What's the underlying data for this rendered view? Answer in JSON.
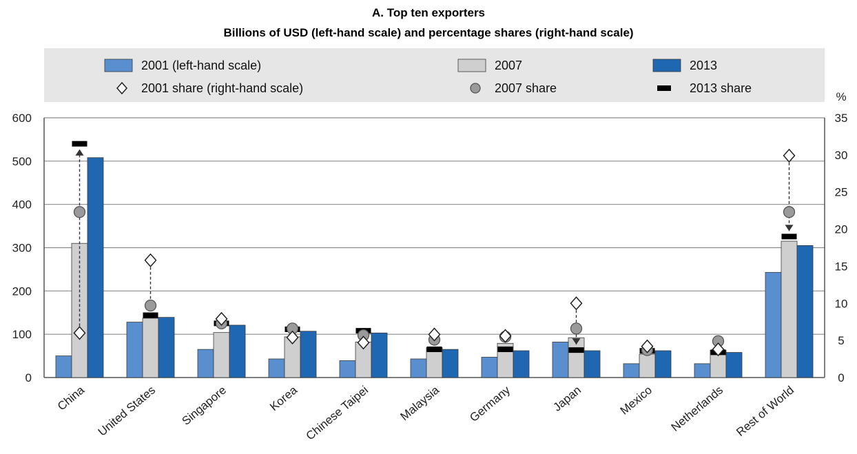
{
  "chart_data": {
    "type": "bar",
    "title": "A. Top ten exporters",
    "subtitle": "Billions of USD (left-hand scale) and percentage shares (right-hand scale)",
    "y2_unit": "%",
    "categories": [
      "China",
      "United States",
      "Singapore",
      "Korea",
      "Chinese Taipei",
      "Malaysia",
      "Germany",
      "Japan",
      "Mexico",
      "Netherlands",
      "Rest of World"
    ],
    "ylim": [
      0,
      600
    ],
    "yticks": [
      0,
      100,
      200,
      300,
      400,
      500,
      600
    ],
    "y2lim": [
      0,
      35
    ],
    "y2ticks": [
      0,
      5,
      10,
      15,
      20,
      25,
      30,
      35
    ],
    "grid": true,
    "legend_position": "top",
    "series": [
      {
        "name": "2001 (left-hand scale)",
        "axis": "left",
        "kind": "bar",
        "color": "#5a8fcf",
        "values": [
          50,
          128,
          65,
          43,
          39,
          43,
          47,
          82,
          32,
          32,
          243
        ]
      },
      {
        "name": "2007",
        "axis": "left",
        "kind": "bar",
        "color": "#cfcfcf",
        "values": [
          310,
          137,
          104,
          94,
          82,
          69,
          79,
          92,
          54,
          63,
          315
        ]
      },
      {
        "name": "2013",
        "axis": "left",
        "kind": "bar",
        "color": "#1f67b1",
        "values": [
          508,
          139,
          121,
          107,
          103,
          65,
          62,
          62,
          62,
          58,
          305
        ]
      },
      {
        "name": "2001 share (right-hand scale)",
        "axis": "right",
        "kind": "marker",
        "marker": "diamond",
        "values": [
          6.0,
          15.8,
          7.9,
          5.4,
          4.7,
          5.8,
          5.6,
          10.0,
          4.2,
          3.8,
          29.9
        ]
      },
      {
        "name": "2007 share",
        "axis": "right",
        "kind": "marker",
        "marker": "circle",
        "values": [
          22.3,
          9.7,
          7.3,
          6.6,
          5.7,
          5.1,
          5.5,
          6.6,
          3.7,
          4.9,
          22.3
        ]
      },
      {
        "name": "2013 share",
        "axis": "right",
        "kind": "marker",
        "marker": "dash",
        "values": [
          31.5,
          8.4,
          7.3,
          6.5,
          6.3,
          3.8,
          3.8,
          3.7,
          3.6,
          3.4,
          19.0
        ]
      }
    ]
  },
  "colors": {
    "plot_background": "#ffffff",
    "legend_background": "#e6e6e6",
    "grid": "#8c8c8c",
    "axis": "#555555",
    "bar_outline": "#3a3a3a",
    "circle_fill": "#9a9a9a",
    "connector": "#333333"
  }
}
